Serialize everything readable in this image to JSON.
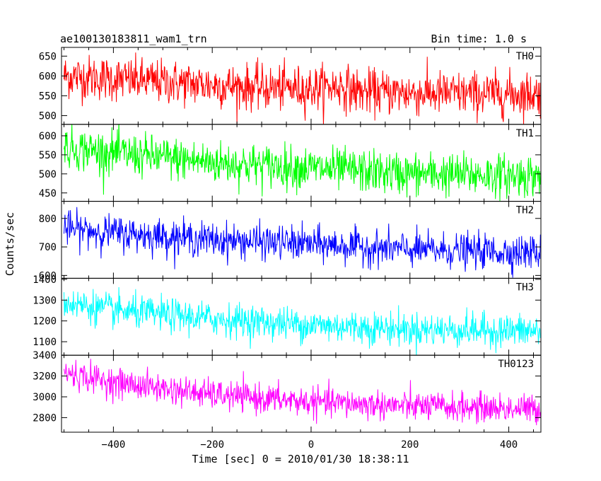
{
  "chart_data": {
    "type": "line",
    "title": "ae100130183811_wam1_trn",
    "subtitle": "Bin time: 1.0 s",
    "xlabel": "Time [sec] 0 = 2010/01/30 18:38:11",
    "ylabel": "Counts/sec",
    "xlim": [
      -505,
      465
    ],
    "x_data_range": [
      -500,
      464
    ],
    "x_ticks": [
      -400,
      -200,
      0,
      200,
      400
    ],
    "grid": false,
    "panels": [
      {
        "name": "TH0",
        "color": "#ff0000",
        "ylim": [
          478,
          672
        ],
        "y_ticks": [
          500,
          550,
          600,
          650
        ],
        "trend": [
          [
            -500,
            600
          ],
          [
            -300,
            585
          ],
          [
            -100,
            570
          ],
          [
            0,
            568
          ],
          [
            60,
            575
          ],
          [
            100,
            560
          ],
          [
            300,
            555
          ],
          [
            464,
            555
          ]
        ],
        "noise_sd": 28
      },
      {
        "name": "TH1",
        "color": "#00ff00",
        "ylim": [
          428,
          630
        ],
        "y_ticks": [
          450,
          500,
          550,
          600
        ],
        "trend": [
          [
            -500,
            570
          ],
          [
            -400,
            555
          ],
          [
            -200,
            530
          ],
          [
            0,
            515
          ],
          [
            200,
            500
          ],
          [
            464,
            495
          ]
        ],
        "noise_sd": 28
      },
      {
        "name": "TH2",
        "color": "#0000ff",
        "ylim": [
          590,
          860
        ],
        "y_ticks": [
          600,
          700,
          800
        ],
        "trend": [
          [
            -500,
            765
          ],
          [
            -400,
            750
          ],
          [
            -200,
            725
          ],
          [
            0,
            710
          ],
          [
            200,
            690
          ],
          [
            464,
            680
          ]
        ],
        "noise_sd": 30
      },
      {
        "name": "TH3",
        "color": "#00ffff",
        "ylim": [
          1035,
          1405
        ],
        "y_ticks": [
          1100,
          1200,
          1300,
          1400
        ],
        "trend": [
          [
            -500,
            1290
          ],
          [
            -400,
            1250
          ],
          [
            -200,
            1210
          ],
          [
            0,
            1180
          ],
          [
            200,
            1160
          ],
          [
            464,
            1150
          ]
        ],
        "noise_sd": 40
      },
      {
        "name": "TH0123",
        "color": "#ff00ff",
        "ylim": [
          2660,
          3400
        ],
        "y_ticks": [
          2800,
          3000,
          3200,
          3400
        ],
        "trend": [
          [
            -500,
            3230
          ],
          [
            -400,
            3140
          ],
          [
            -200,
            3020
          ],
          [
            0,
            2950
          ],
          [
            200,
            2910
          ],
          [
            464,
            2880
          ]
        ],
        "noise_sd": 70
      }
    ]
  }
}
